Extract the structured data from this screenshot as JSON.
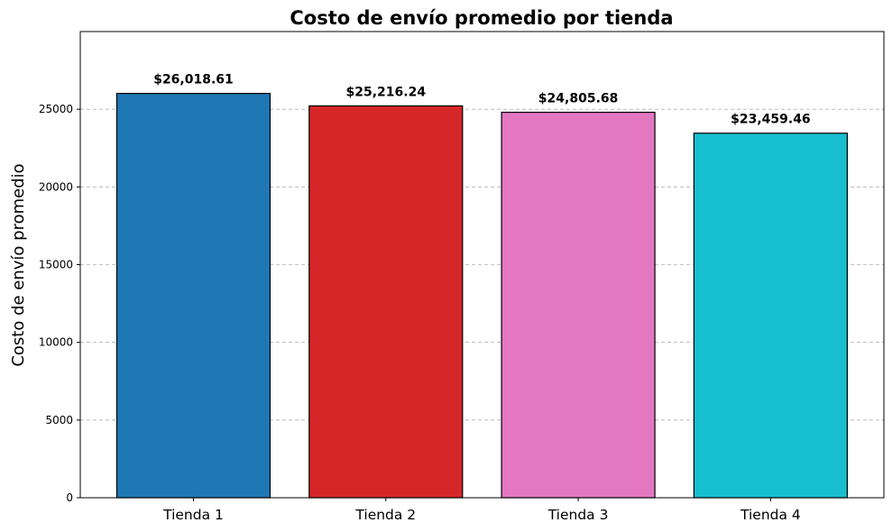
{
  "chart_data": {
    "type": "bar",
    "title": "Costo de envío promedio por tienda",
    "xlabel": "",
    "ylabel": "Costo de envío promedio",
    "categories": [
      "Tienda 1",
      "Tienda 2",
      "Tienda 3",
      "Tienda 4"
    ],
    "values": [
      26018.61,
      25216.24,
      24805.68,
      23459.46
    ],
    "data_labels": [
      "$26,018.61",
      "$25,216.24",
      "$24,805.68",
      "$23,459.46"
    ],
    "colors": [
      "#1f77b4",
      "#d62728",
      "#e377c2",
      "#17becf"
    ],
    "ylim": [
      0,
      30000
    ],
    "yticks": [
      0,
      5000,
      10000,
      15000,
      20000,
      25000
    ],
    "ytick_labels": [
      "0",
      "5000",
      "10000",
      "15000",
      "20000",
      "25000"
    ],
    "grid": "y-dashed",
    "legend": "none"
  }
}
